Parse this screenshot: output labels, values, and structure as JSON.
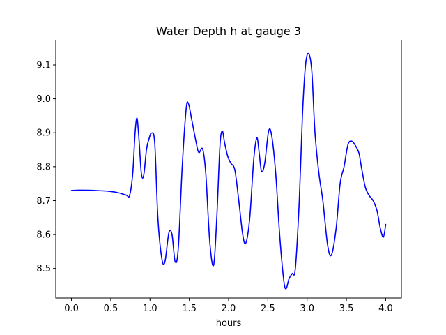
{
  "chart_data": {
    "type": "line",
    "title": "Water Depth h at gauge 3",
    "xlabel": "hours",
    "ylabel": "",
    "xlim": [
      -0.2,
      4.2
    ],
    "ylim": [
      8.413,
      9.173
    ],
    "xticks": [
      0.0,
      0.5,
      1.0,
      1.5,
      2.0,
      2.5,
      3.0,
      3.5,
      4.0
    ],
    "xtick_labels": [
      "0.0",
      "0.5",
      "1.0",
      "1.5",
      "2.0",
      "2.5",
      "3.0",
      "3.5",
      "4.0"
    ],
    "yticks": [
      8.5,
      8.6,
      8.7,
      8.8,
      8.9,
      9.0,
      9.1
    ],
    "ytick_labels": [
      "8.5",
      "8.6",
      "8.7",
      "8.8",
      "8.9",
      "9.0",
      "9.1"
    ],
    "grid": false,
    "series": [
      {
        "color": "#0000ff",
        "x": [
          0.0,
          0.1,
          0.3,
          0.5,
          0.6,
          0.7,
          0.74,
          0.78,
          0.81,
          0.835,
          0.86,
          0.89,
          0.92,
          0.955,
          0.985,
          1.02,
          1.06,
          1.1,
          1.15,
          1.19,
          1.24,
          1.28,
          1.32,
          1.36,
          1.41,
          1.46,
          1.49,
          1.53,
          1.58,
          1.62,
          1.67,
          1.71,
          1.76,
          1.81,
          1.85,
          1.89,
          1.92,
          1.95,
          1.99,
          2.03,
          2.08,
          2.13,
          2.18,
          2.22,
          2.27,
          2.32,
          2.36,
          2.39,
          2.42,
          2.46,
          2.51,
          2.55,
          2.6,
          2.65,
          2.7,
          2.73,
          2.77,
          2.81,
          2.85,
          2.9,
          2.94,
          2.98,
          3.02,
          3.06,
          3.1,
          3.15,
          3.2,
          3.26,
          3.31,
          3.37,
          3.42,
          3.47,
          3.52,
          3.57,
          3.62,
          3.66,
          3.69,
          3.74,
          3.79,
          3.84,
          3.89,
          3.93,
          3.97,
          4.0
        ],
        "y": [
          8.73,
          8.731,
          8.73,
          8.727,
          8.723,
          8.716,
          8.715,
          8.78,
          8.9,
          8.943,
          8.88,
          8.78,
          8.775,
          8.85,
          8.88,
          8.899,
          8.87,
          8.65,
          8.53,
          8.52,
          8.605,
          8.6,
          8.52,
          8.56,
          8.8,
          8.97,
          8.985,
          8.94,
          8.88,
          8.842,
          8.852,
          8.78,
          8.58,
          8.51,
          8.65,
          8.86,
          8.905,
          8.87,
          8.83,
          8.81,
          8.79,
          8.7,
          8.6,
          8.575,
          8.65,
          8.82,
          8.885,
          8.84,
          8.786,
          8.81,
          8.905,
          8.89,
          8.78,
          8.6,
          8.47,
          8.44,
          8.47,
          8.485,
          8.5,
          8.7,
          8.95,
          9.1,
          9.133,
          9.08,
          8.9,
          8.78,
          8.7,
          8.57,
          8.54,
          8.62,
          8.75,
          8.8,
          8.865,
          8.875,
          8.86,
          8.84,
          8.8,
          8.74,
          8.715,
          8.7,
          8.67,
          8.62,
          8.592,
          8.63
        ]
      }
    ]
  }
}
